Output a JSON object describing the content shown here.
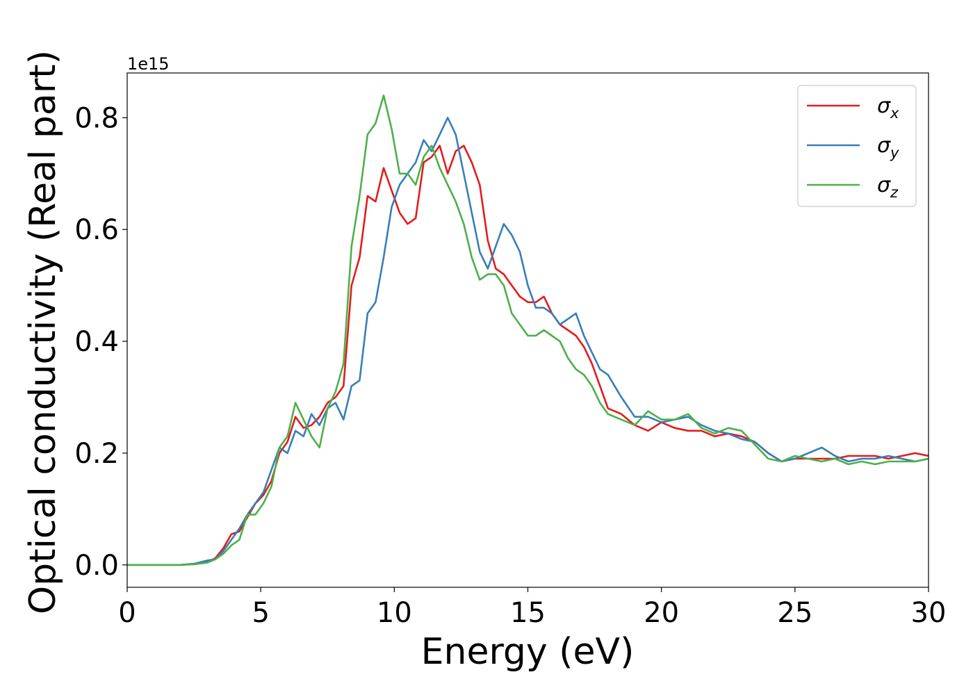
{
  "chart_data": {
    "type": "line",
    "xlabel": "Energy (eV)",
    "ylabel": "Optical conductivity (Real part)",
    "y_offset_label": "1e15",
    "xlim": [
      0,
      30
    ],
    "ylim": [
      -0.04,
      0.88
    ],
    "x_ticks": [
      0,
      5,
      10,
      15,
      20,
      25,
      30
    ],
    "y_ticks": [
      0.0,
      0.2,
      0.4,
      0.6,
      0.8
    ],
    "x_tick_labels": [
      "0",
      "5",
      "10",
      "15",
      "20",
      "25",
      "30"
    ],
    "y_tick_labels": [
      "0.0",
      "0.2",
      "0.4",
      "0.6",
      "0.8"
    ],
    "grid": false,
    "legend_position": "top-right",
    "x": [
      0,
      0.5,
      1,
      1.5,
      2,
      2.5,
      3,
      3.3,
      3.6,
      3.9,
      4.2,
      4.5,
      4.8,
      5.1,
      5.4,
      5.7,
      6.0,
      6.3,
      6.6,
      6.9,
      7.2,
      7.5,
      7.8,
      8.1,
      8.4,
      8.7,
      9.0,
      9.3,
      9.6,
      9.9,
      10.2,
      10.5,
      10.8,
      11.1,
      11.4,
      11.7,
      12.0,
      12.3,
      12.6,
      12.9,
      13.2,
      13.5,
      13.8,
      14.1,
      14.4,
      14.7,
      15.0,
      15.3,
      15.6,
      15.9,
      16.2,
      16.5,
      16.8,
      17.1,
      17.4,
      17.7,
      18.0,
      18.5,
      19.0,
      19.5,
      20.0,
      20.5,
      21.0,
      21.5,
      22.0,
      22.5,
      23.0,
      23.5,
      24.0,
      24.5,
      25.0,
      25.5,
      26.0,
      26.5,
      27.0,
      27.5,
      28.0,
      28.5,
      29.0,
      29.5,
      30.0
    ],
    "series": [
      {
        "name": "σx",
        "sub": "x",
        "color": "#e41a1c",
        "values": [
          0.0,
          0.0,
          0.0,
          0.0,
          0.0,
          0.002,
          0.005,
          0.012,
          0.03,
          0.055,
          0.06,
          0.085,
          0.11,
          0.125,
          0.15,
          0.2,
          0.22,
          0.265,
          0.245,
          0.25,
          0.265,
          0.29,
          0.3,
          0.32,
          0.5,
          0.55,
          0.66,
          0.65,
          0.71,
          0.67,
          0.63,
          0.61,
          0.62,
          0.72,
          0.73,
          0.75,
          0.7,
          0.74,
          0.75,
          0.72,
          0.68,
          0.58,
          0.53,
          0.52,
          0.5,
          0.48,
          0.47,
          0.47,
          0.48,
          0.45,
          0.43,
          0.42,
          0.41,
          0.39,
          0.36,
          0.32,
          0.28,
          0.27,
          0.25,
          0.24,
          0.255,
          0.245,
          0.24,
          0.24,
          0.23,
          0.235,
          0.23,
          0.22,
          0.2,
          0.185,
          0.19,
          0.19,
          0.19,
          0.19,
          0.195,
          0.195,
          0.195,
          0.19,
          0.195,
          0.2,
          0.195
        ]
      },
      {
        "name": "σy",
        "sub": "y",
        "color": "#377eb8",
        "values": [
          0.0,
          0.0,
          0.0,
          0.0,
          0.0,
          0.002,
          0.008,
          0.01,
          0.025,
          0.045,
          0.065,
          0.09,
          0.11,
          0.13,
          0.17,
          0.21,
          0.2,
          0.24,
          0.23,
          0.27,
          0.25,
          0.28,
          0.29,
          0.26,
          0.32,
          0.33,
          0.45,
          0.47,
          0.55,
          0.64,
          0.68,
          0.7,
          0.72,
          0.76,
          0.74,
          0.77,
          0.8,
          0.77,
          0.7,
          0.63,
          0.56,
          0.53,
          0.57,
          0.61,
          0.59,
          0.56,
          0.5,
          0.46,
          0.46,
          0.45,
          0.43,
          0.44,
          0.45,
          0.41,
          0.38,
          0.35,
          0.34,
          0.3,
          0.265,
          0.265,
          0.255,
          0.26,
          0.265,
          0.25,
          0.24,
          0.235,
          0.225,
          0.22,
          0.2,
          0.185,
          0.19,
          0.2,
          0.21,
          0.195,
          0.185,
          0.19,
          0.19,
          0.195,
          0.19,
          0.185,
          0.19
        ]
      },
      {
        "name": "σz",
        "sub": "z",
        "color": "#4daf4a",
        "values": [
          0.0,
          0.0,
          0.0,
          0.0,
          0.0,
          0.001,
          0.004,
          0.01,
          0.02,
          0.035,
          0.045,
          0.09,
          0.09,
          0.11,
          0.14,
          0.21,
          0.23,
          0.29,
          0.26,
          0.23,
          0.21,
          0.28,
          0.31,
          0.36,
          0.57,
          0.66,
          0.77,
          0.79,
          0.84,
          0.78,
          0.7,
          0.7,
          0.68,
          0.73,
          0.75,
          0.71,
          0.68,
          0.65,
          0.61,
          0.55,
          0.51,
          0.52,
          0.52,
          0.5,
          0.45,
          0.43,
          0.41,
          0.41,
          0.42,
          0.41,
          0.4,
          0.37,
          0.35,
          0.34,
          0.32,
          0.29,
          0.27,
          0.26,
          0.25,
          0.275,
          0.26,
          0.26,
          0.27,
          0.245,
          0.235,
          0.245,
          0.24,
          0.215,
          0.19,
          0.185,
          0.195,
          0.19,
          0.185,
          0.19,
          0.18,
          0.185,
          0.18,
          0.185,
          0.185,
          0.185,
          0.19
        ]
      }
    ]
  }
}
